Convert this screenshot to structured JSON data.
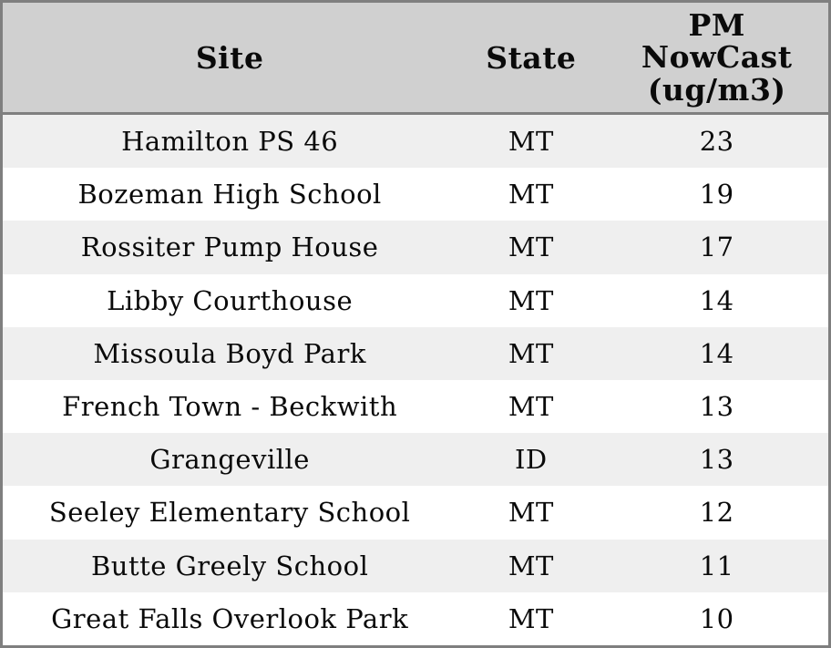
{
  "table": {
    "headers": {
      "site": "Site",
      "state": "State",
      "pm": "PM\nNowCast\n(ug/m3)"
    },
    "rows": [
      {
        "site": "Hamilton PS 46",
        "state": "MT",
        "value": "23"
      },
      {
        "site": "Bozeman High School",
        "state": "MT",
        "value": "19"
      },
      {
        "site": "Rossiter Pump House",
        "state": "MT",
        "value": "17"
      },
      {
        "site": "Libby Courthouse",
        "state": "MT",
        "value": "14"
      },
      {
        "site": "Missoula Boyd Park",
        "state": "MT",
        "value": "14"
      },
      {
        "site": "French Town - Beckwith",
        "state": "MT",
        "value": "13"
      },
      {
        "site": "Grangeville",
        "state": "ID",
        "value": "13"
      },
      {
        "site": "Seeley Elementary School",
        "state": "MT",
        "value": "12"
      },
      {
        "site": "Butte Greely School",
        "state": "MT",
        "value": "11"
      },
      {
        "site": "Great Falls Overlook Park",
        "state": "MT",
        "value": "10"
      }
    ]
  },
  "colors": {
    "header_bg": "#d0d0d0",
    "row_alt_bg": "#efefef",
    "row_bg": "#ffffff",
    "border": "#7f7f7f",
    "text": "#0a0a0a"
  },
  "chart_data": {
    "type": "table",
    "columns": [
      "Site",
      "State",
      "PM NowCast (ug/m3)"
    ],
    "rows": [
      [
        "Hamilton PS 46",
        "MT",
        23
      ],
      [
        "Bozeman High School",
        "MT",
        19
      ],
      [
        "Rossiter Pump House",
        "MT",
        17
      ],
      [
        "Libby Courthouse",
        "MT",
        14
      ],
      [
        "Missoula Boyd Park",
        "MT",
        14
      ],
      [
        "French Town - Beckwith",
        "MT",
        13
      ],
      [
        "Grangeville",
        "ID",
        13
      ],
      [
        "Seeley Elementary School",
        "MT",
        12
      ],
      [
        "Butte Greely School",
        "MT",
        11
      ],
      [
        "Great Falls Overlook Park",
        "MT",
        10
      ]
    ],
    "title": "",
    "layout": {
      "header_background": "#d0d0d0",
      "alternating_row_background": [
        "#efefef",
        "#ffffff"
      ],
      "grid": false,
      "value_column_units": "ug/m3"
    }
  }
}
